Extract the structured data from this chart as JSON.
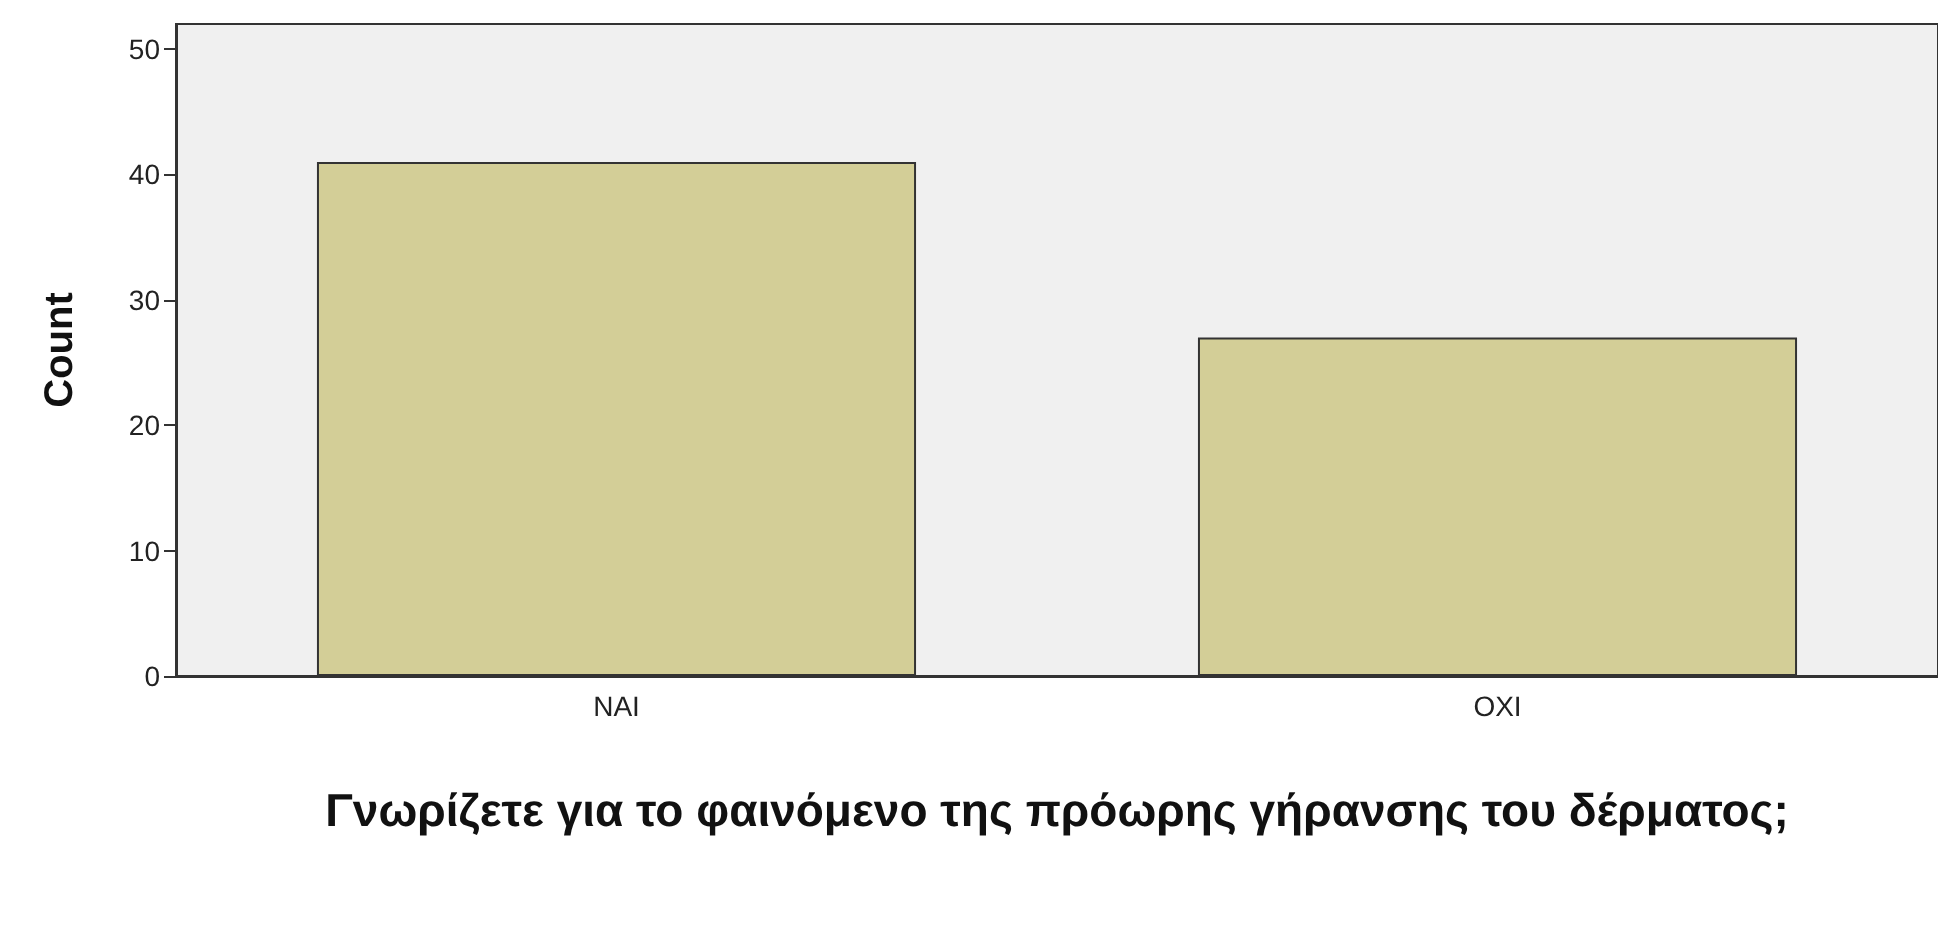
{
  "chart_data": {
    "type": "bar",
    "categories": [
      "ΝΑΙ",
      "ΟΧΙ"
    ],
    "values": [
      41,
      27
    ],
    "color": "#d3ce97",
    "ylim": [
      0,
      52
    ],
    "yticks": [
      0,
      10,
      20,
      30,
      40,
      50
    ],
    "xlabel": "Γνωρίζετε για το φαινόμενο της πρόωρης γήρανσης του δέρματος;",
    "ylabel": "Count",
    "grid": false
  }
}
